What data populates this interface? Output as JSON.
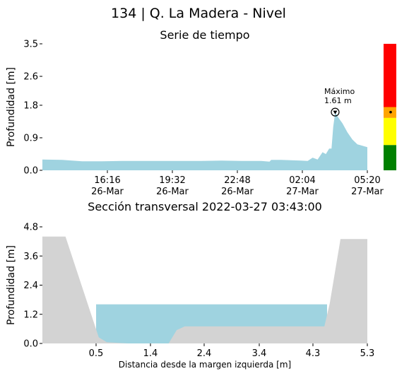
{
  "page_title": "134 | Q. La Madera - Nivel",
  "chart_data": [
    {
      "type": "area",
      "title": "Serie de tiempo",
      "xlabel": "",
      "ylabel": "Profundidad [m]",
      "ylim": [
        0,
        3.5
      ],
      "yticks": [
        "0.0",
        "0.9",
        "1.8",
        "2.6",
        "3.5"
      ],
      "xticks": [
        {
          "time": "16:16",
          "date": "26-Mar"
        },
        {
          "time": "19:32",
          "date": "26-Mar"
        },
        {
          "time": "22:48",
          "date": "26-Mar"
        },
        {
          "time": "02:04",
          "date": "27-Mar"
        },
        {
          "time": "05:20",
          "date": "27-Mar"
        }
      ],
      "x_start": "2022-03-26 13:00",
      "x_end": "2022-03-27 05:20",
      "series": [
        {
          "color": "#9fd3e0",
          "points": [
            {
              "t": "2022-03-26 13:00",
              "y": 0.3
            },
            {
              "t": "2022-03-26 14:00",
              "y": 0.29
            },
            {
              "t": "2022-03-26 15:00",
              "y": 0.25
            },
            {
              "t": "2022-03-26 16:00",
              "y": 0.25
            },
            {
              "t": "2022-03-26 17:00",
              "y": 0.26
            },
            {
              "t": "2022-03-26 18:00",
              "y": 0.26
            },
            {
              "t": "2022-03-26 19:00",
              "y": 0.26
            },
            {
              "t": "2022-03-26 20:00",
              "y": 0.26
            },
            {
              "t": "2022-03-26 21:00",
              "y": 0.26
            },
            {
              "t": "2022-03-26 22:00",
              "y": 0.27
            },
            {
              "t": "2022-03-26 23:00",
              "y": 0.26
            },
            {
              "t": "2022-03-27 00:00",
              "y": 0.26
            },
            {
              "t": "2022-03-27 00:25",
              "y": 0.24
            },
            {
              "t": "2022-03-27 00:30",
              "y": 0.29
            },
            {
              "t": "2022-03-27 01:00",
              "y": 0.29
            },
            {
              "t": "2022-03-27 02:00",
              "y": 0.27
            },
            {
              "t": "2022-03-27 02:20",
              "y": 0.26
            },
            {
              "t": "2022-03-27 02:35",
              "y": 0.35
            },
            {
              "t": "2022-03-27 02:50",
              "y": 0.3
            },
            {
              "t": "2022-03-27 03:05",
              "y": 0.5
            },
            {
              "t": "2022-03-27 03:15",
              "y": 0.45
            },
            {
              "t": "2022-03-27 03:25",
              "y": 0.6
            },
            {
              "t": "2022-03-27 03:32",
              "y": 0.6
            },
            {
              "t": "2022-03-27 03:37",
              "y": 1.2
            },
            {
              "t": "2022-03-27 03:43",
              "y": 1.61
            },
            {
              "t": "2022-03-27 03:53",
              "y": 1.45
            },
            {
              "t": "2022-03-27 04:05",
              "y": 1.3
            },
            {
              "t": "2022-03-27 04:20",
              "y": 1.05
            },
            {
              "t": "2022-03-27 04:35",
              "y": 0.85
            },
            {
              "t": "2022-03-27 04:50",
              "y": 0.72
            },
            {
              "t": "2022-03-27 05:05",
              "y": 0.68
            },
            {
              "t": "2022-03-27 05:20",
              "y": 0.64
            }
          ]
        }
      ],
      "annotation": {
        "label": "Máximo",
        "value": "1.61 m",
        "t": "2022-03-27 03:43",
        "y": 1.61
      },
      "alert_bar": {
        "levels": [
          {
            "color": "#008000",
            "from": 0.0,
            "to": 0.7
          },
          {
            "color": "#ffff00",
            "from": 0.7,
            "to": 1.45
          },
          {
            "color": "#ffa500",
            "from": 1.45,
            "to": 1.75
          },
          {
            "color": "#ff0000",
            "from": 1.75,
            "to": 3.5
          }
        ],
        "current_level": 1.61
      }
    },
    {
      "type": "area",
      "title": "Sección transversal 2022-03-27 03:43:00",
      "xlabel": "Distancia desde la margen izquierda [m]",
      "ylabel": "Profundidad [m]",
      "xlim": [
        0,
        5.3
      ],
      "ylim": [
        0,
        4.8
      ],
      "xticks": [
        "0.5",
        "1.4",
        "2.4",
        "3.4",
        "4.3",
        "5.3"
      ],
      "yticks": [
        "0.0",
        "1.2",
        "2.4",
        "3.6",
        "4.8"
      ],
      "water_level": 1.61,
      "water_color": "#9fd3e0",
      "ground_color": "#d3d3d3",
      "terrain": [
        {
          "x": 0.0,
          "y": 4.4
        },
        {
          "x": 0.43,
          "y": 4.4
        },
        {
          "x": 1.05,
          "y": 0.25
        },
        {
          "x": 1.2,
          "y": 0.05
        },
        {
          "x": 1.6,
          "y": 0.0
        },
        {
          "x": 2.35,
          "y": 0.0
        },
        {
          "x": 2.5,
          "y": 0.55
        },
        {
          "x": 2.65,
          "y": 0.7
        },
        {
          "x": 5.25,
          "y": 0.7
        },
        {
          "x": 5.35,
          "y": 1.65
        },
        {
          "x": 5.55,
          "y": 4.3
        },
        {
          "x": 6.05,
          "y": 4.3
        }
      ]
    }
  ]
}
